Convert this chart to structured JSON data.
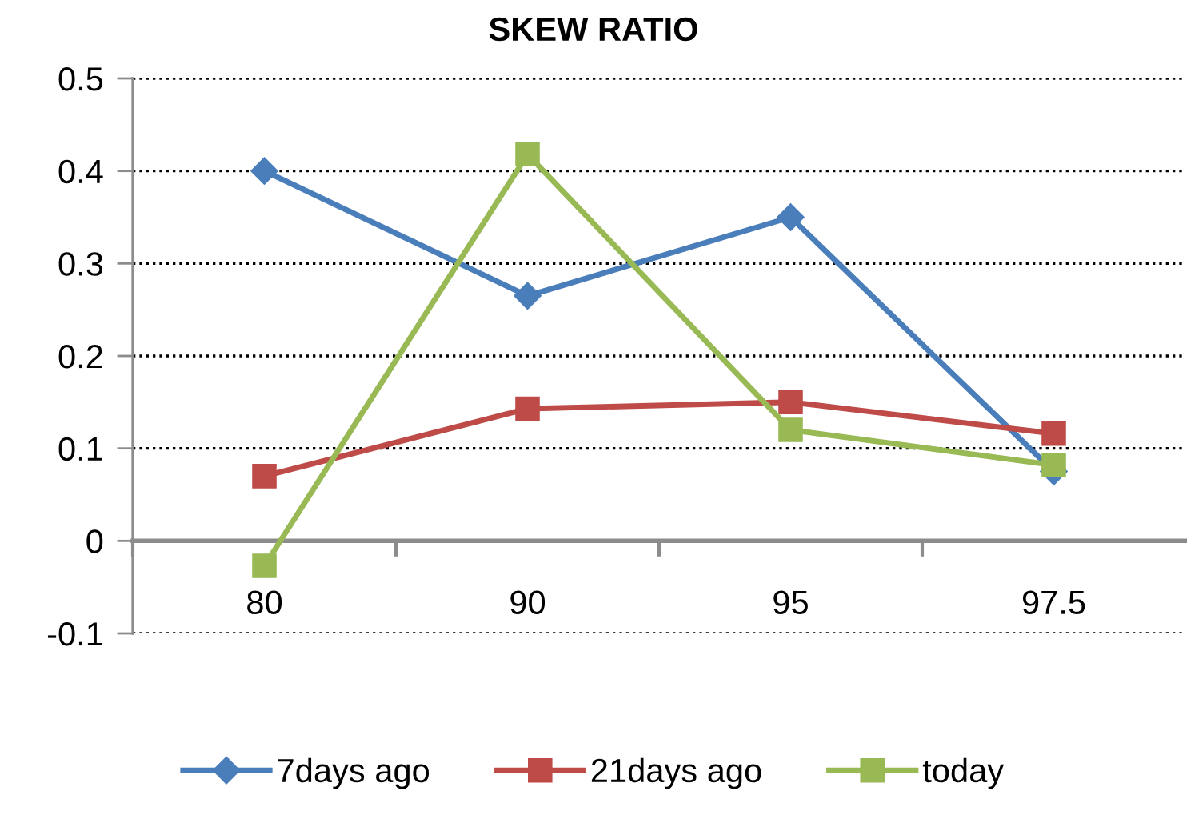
{
  "chart_data": {
    "type": "line",
    "title": "SKEW RATIO",
    "categories": [
      "80",
      "90",
      "95",
      "97.5"
    ],
    "series": [
      {
        "name": "7days ago",
        "color": "#4a7ebb",
        "marker": "diamond",
        "values": [
          0.4,
          0.265,
          0.35,
          0.075
        ]
      },
      {
        "name": "21days ago",
        "color": "#be4b48",
        "marker": "square",
        "values": [
          0.07,
          0.143,
          0.15,
          0.116
        ]
      },
      {
        "name": "today",
        "color": "#98b954",
        "marker": "square",
        "values": [
          -0.027,
          0.418,
          0.12,
          0.082
        ]
      }
    ],
    "ylim": [
      -0.1,
      0.5
    ],
    "yticks": [
      0.5,
      0.4,
      0.3,
      0.2,
      0.1,
      0,
      -0.1
    ],
    "grid": "y",
    "legend": "bottom",
    "line_style": "solid"
  }
}
